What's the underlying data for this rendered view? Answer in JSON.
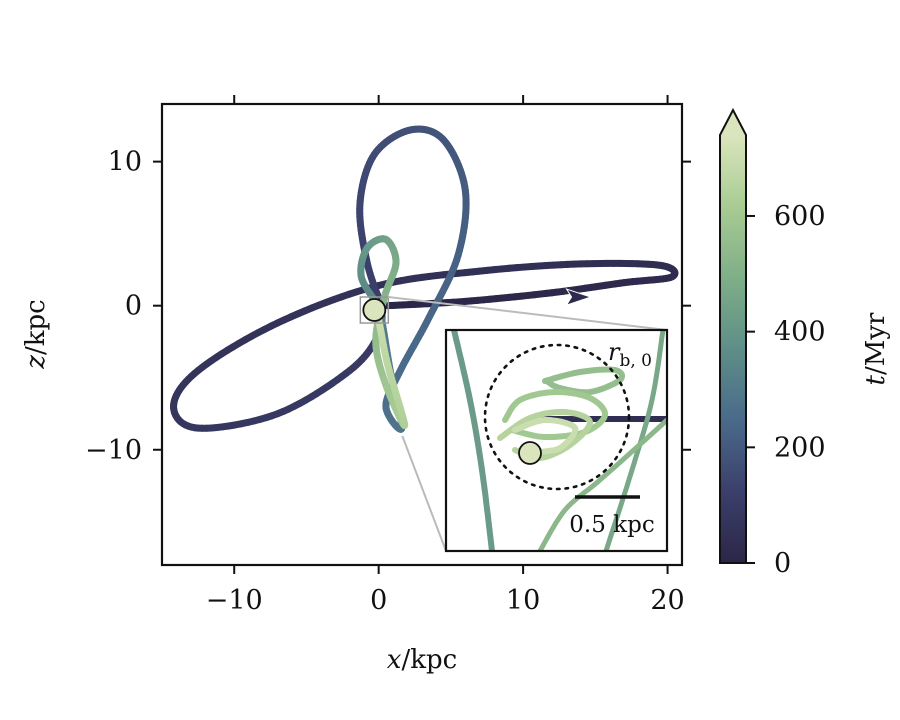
{
  "chart_data": {
    "type": "line",
    "title": "",
    "x_axis": {
      "label_var": "x",
      "label_unit": "/kpc",
      "range": [
        -15,
        21
      ],
      "ticks": [
        -10,
        0,
        10,
        20
      ],
      "tick_labels": [
        "−10",
        "0",
        "10",
        "20"
      ]
    },
    "y_axis": {
      "label_var": "z",
      "label_unit": "/kpc",
      "range": [
        -18,
        14
      ],
      "ticks": [
        -10,
        0,
        10
      ],
      "tick_labels": [
        "−10",
        "0",
        "10"
      ]
    },
    "colorbar": {
      "label_var": "t",
      "label_unit": "/Myr",
      "range": [
        0,
        740
      ],
      "ticks": [
        0,
        200,
        400,
        600
      ],
      "tick_labels": [
        "0",
        "200",
        "400",
        "600"
      ],
      "extend": "max",
      "colormap": [
        "#2b2647",
        "#3b3f6b",
        "#4a6a8a",
        "#5e8e88",
        "#7fae88",
        "#a8cc93",
        "#dbe5bd"
      ]
    },
    "series": [
      {
        "segment": "first-orbit",
        "t_range": [
          0,
          110
        ],
        "points": [
          [
            0.6,
            0.0
          ],
          [
            6,
            0.3
          ],
          [
            12,
            0.9
          ],
          [
            17,
            1.6
          ],
          [
            20.3,
            2.0
          ],
          [
            19.5,
            2.8
          ],
          [
            14,
            2.9
          ],
          [
            7,
            2.4
          ],
          [
            0,
            1.4
          ],
          [
            -7,
            -1.2
          ],
          [
            -12.5,
            -4.5
          ],
          [
            -14.2,
            -7.0
          ],
          [
            -12.5,
            -8.5
          ],
          [
            -7,
            -7.5
          ],
          [
            -2,
            -4.5
          ],
          [
            0,
            -2.0
          ],
          [
            0.2,
            0.0
          ]
        ]
      },
      {
        "segment": "big-vertical-loop",
        "t_range": [
          110,
          330
        ],
        "points": [
          [
            0.2,
            0.0
          ],
          [
            -0.8,
            3.0
          ],
          [
            -1.3,
            7.0
          ],
          [
            -0.3,
            10.5
          ],
          [
            2.2,
            12.2
          ],
          [
            4.5,
            11.5
          ],
          [
            6.0,
            8.0
          ],
          [
            5.5,
            3.5
          ],
          [
            3.5,
            -0.8
          ],
          [
            1.5,
            -4.5
          ],
          [
            0.5,
            -7.0
          ],
          [
            1.6,
            -8.5
          ],
          [
            0.8,
            -4.5
          ],
          [
            0.3,
            -1.5
          ],
          [
            0.0,
            0.0
          ]
        ]
      },
      {
        "segment": "inner-loops",
        "t_range": [
          330,
          740
        ],
        "points": [
          [
            0.0,
            0.0
          ],
          [
            -1.2,
            2.0
          ],
          [
            -0.8,
            4.0
          ],
          [
            0.5,
            4.6
          ],
          [
            1.2,
            3.0
          ],
          [
            0.4,
            0.6
          ],
          [
            -0.2,
            -2.5
          ],
          [
            0.5,
            -5.5
          ],
          [
            1.8,
            -8.3
          ],
          [
            0.6,
            -4.0
          ],
          [
            0.0,
            -1.0
          ],
          [
            -0.3,
            -0.2
          ]
        ]
      }
    ],
    "arrow_marker": {
      "x": 13.7,
      "y": 0.6
    },
    "circle_marker": {
      "x": -0.3,
      "y": -0.3,
      "fill": "#dbe5bd"
    },
    "inset": {
      "circle_label_var": "r",
      "circle_label_sub": "b, 0",
      "scale_bar_label": "0.5 kpc",
      "scale_bar_value": 0.5
    }
  }
}
